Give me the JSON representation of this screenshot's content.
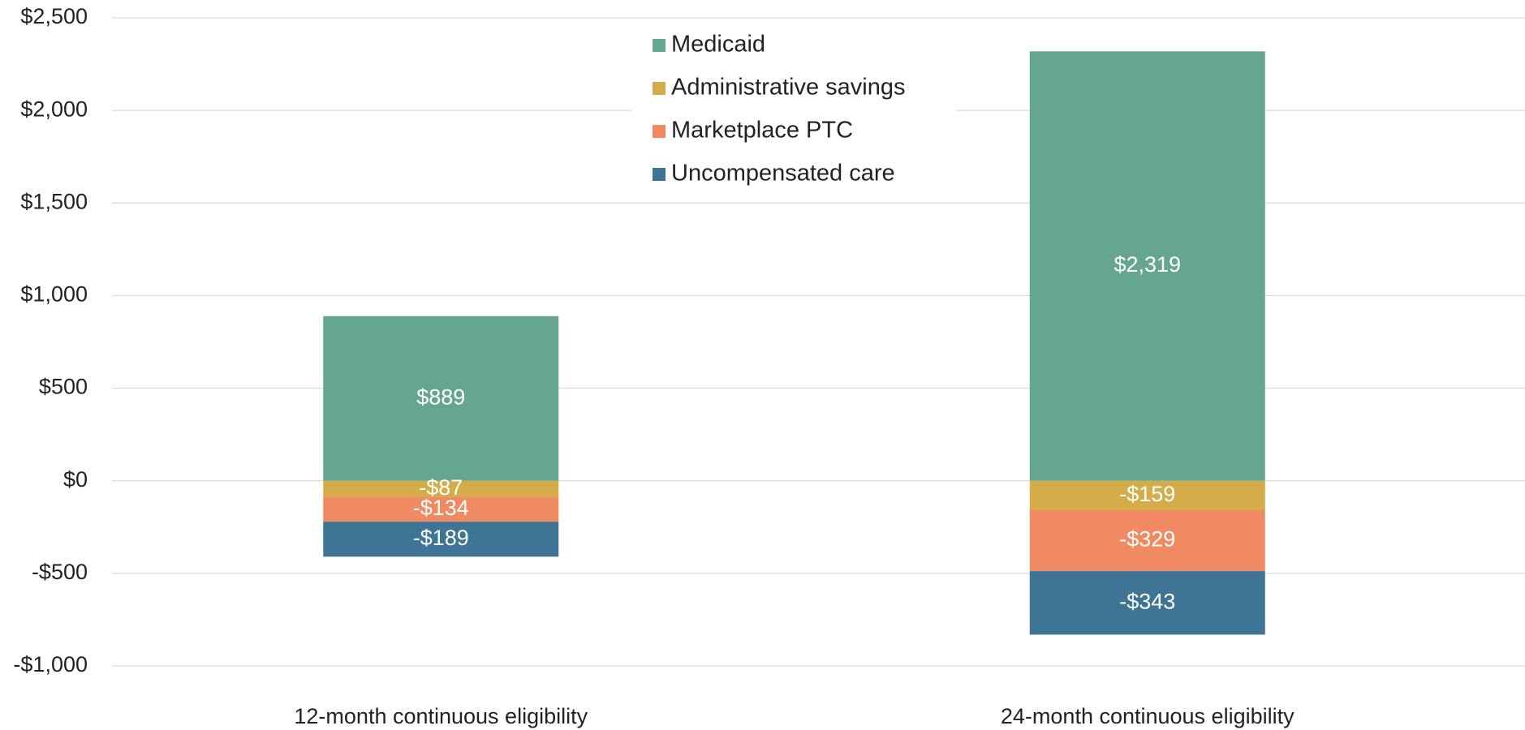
{
  "chart_data": {
    "type": "stacked_bar",
    "categories": [
      "12-month continuous eligibility",
      "24-month continuous eligibility"
    ],
    "series": [
      {
        "name": "Medicaid",
        "color": "#66a690",
        "values": [
          889,
          2319
        ],
        "value_labels": [
          "$889",
          "$2,319"
        ]
      },
      {
        "name": "Administrative savings",
        "color": "#d4ad4a",
        "values": [
          -87,
          -159
        ],
        "value_labels": [
          "-$87",
          "-$159"
        ]
      },
      {
        "name": "Marketplace PTC",
        "color": "#ef8a62",
        "values": [
          -134,
          -329
        ],
        "value_labels": [
          "-$134",
          "-$329"
        ]
      },
      {
        "name": "Uncompensated care",
        "color": "#3f7594",
        "values": [
          -189,
          -343
        ],
        "value_labels": [
          "-$189",
          "-$343"
        ]
      }
    ],
    "ylim": [
      -1000,
      2500
    ],
    "yticks": [
      {
        "value": -1000,
        "label": "-$1,000"
      },
      {
        "value": -500,
        "label": "-$500"
      },
      {
        "value": 0,
        "label": "$0"
      },
      {
        "value": 500,
        "label": "$500"
      },
      {
        "value": 1000,
        "label": "$1,000"
      },
      {
        "value": 1500,
        "label": "$1,500"
      },
      {
        "value": 2000,
        "label": "$2,000"
      },
      {
        "value": 2500,
        "label": "$2,500"
      }
    ],
    "grid": true,
    "legend": "top-center"
  }
}
